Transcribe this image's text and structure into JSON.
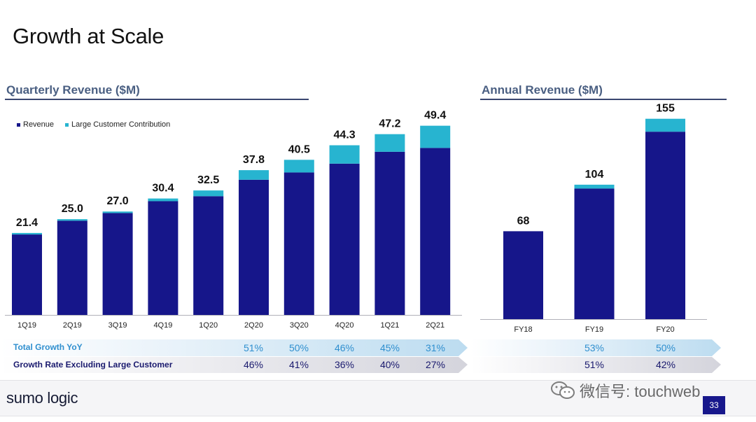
{
  "slide": {
    "title": "Growth at Scale",
    "page_number": "33"
  },
  "brand": {
    "name": "sumo logic"
  },
  "watermark": {
    "text": "微信号: touchweb"
  },
  "colors": {
    "revenue": "#16168a",
    "large_customer": "#27b4d0",
    "row1_text": "#2f8fcf",
    "row2_text": "#1a1a6e",
    "rule": "#3a4670"
  },
  "legend": {
    "revenue": "Revenue",
    "large_customer": "Large Customer Contribution"
  },
  "quarterly": {
    "section_title": "Quarterly Revenue ($M)"
  },
  "annual": {
    "section_title": "Annual Revenue ($M)"
  },
  "growth_table": {
    "row1_label": "Total Growth YoY",
    "row2_label": "Growth Rate Excluding Large Customer",
    "quarterly_row1": [
      "51%",
      "50%",
      "46%",
      "45%",
      "31%"
    ],
    "quarterly_row2": [
      "46%",
      "41%",
      "36%",
      "40%",
      "27%"
    ],
    "annual_row1": [
      "53%",
      "50%"
    ],
    "annual_row2": [
      "51%",
      "42%"
    ]
  },
  "chart_data": [
    {
      "type": "bar",
      "title": "Quarterly Revenue ($M)",
      "stacked": true,
      "categories": [
        "1Q19",
        "2Q19",
        "3Q19",
        "4Q19",
        "1Q20",
        "2Q20",
        "3Q20",
        "4Q20",
        "1Q21",
        "2Q21"
      ],
      "totals": [
        "21.4",
        "25.0",
        "27.0",
        "30.4",
        "32.5",
        "37.8",
        "40.5",
        "44.3",
        "47.2",
        "49.4"
      ],
      "series": [
        {
          "name": "Revenue",
          "values": [
            21.0,
            24.6,
            26.6,
            29.7,
            31.0,
            35.3,
            37.2,
            39.5,
            42.6,
            43.6
          ]
        },
        {
          "name": "Large Customer Contribution",
          "values": [
            0.4,
            0.4,
            0.4,
            0.7,
            1.5,
            2.5,
            3.3,
            4.8,
            4.6,
            5.8
          ]
        }
      ],
      "ylim": [
        0,
        55
      ],
      "legend": "top-left",
      "grid": false
    },
    {
      "type": "bar",
      "title": "Annual Revenue ($M)",
      "stacked": true,
      "categories": [
        "FY18",
        "FY19",
        "FY20"
      ],
      "totals": [
        "68",
        "104",
        "155"
      ],
      "series": [
        {
          "name": "Revenue",
          "values": [
            68,
            101,
            145
          ]
        },
        {
          "name": "Large Customer Contribution",
          "values": [
            0,
            3,
            10
          ]
        }
      ],
      "ylim": [
        0,
        170
      ],
      "grid": false
    }
  ]
}
